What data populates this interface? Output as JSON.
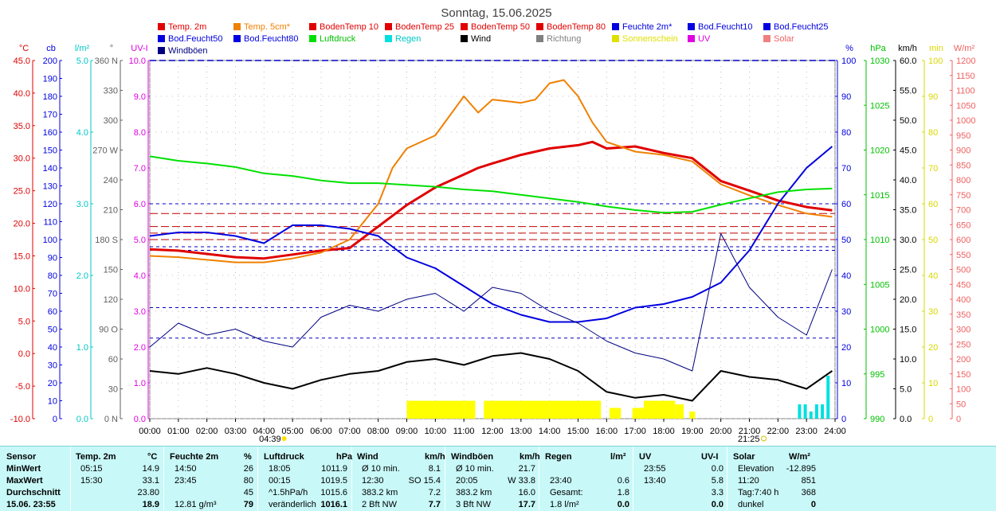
{
  "title": "Sonntag, 15.06.2025",
  "legend": [
    {
      "label": "Temp. 2m",
      "color": "#e00000"
    },
    {
      "label": "Temp. 5cm*",
      "color": "#f08000"
    },
    {
      "label": "BodenTemp 10",
      "color": "#e00000"
    },
    {
      "label": "BodenTemp 25",
      "color": "#e00000"
    },
    {
      "label": "BodenTemp 50",
      "color": "#e00000"
    },
    {
      "label": "BodenTemp 80",
      "color": "#e00000"
    },
    {
      "label": "Feuchte 2m*",
      "color": "#0000e0"
    },
    {
      "label": "Bod.Feucht10",
      "color": "#0000e0"
    },
    {
      "label": "Bod.Feucht25",
      "color": "#0000e0"
    },
    {
      "label": "Bod.Feucht50",
      "color": "#0000e0"
    },
    {
      "label": "Bod.Feucht80",
      "color": "#0000e0"
    },
    {
      "label": "Luftdruck",
      "color": "#00e000"
    },
    {
      "label": "Regen",
      "color": "#00e0e0"
    },
    {
      "label": "Wind",
      "color": "#000000"
    },
    {
      "label": "Richtung",
      "color": "#808080"
    },
    {
      "label": "Sonnenschein",
      "color": "#e0e000"
    },
    {
      "label": "UV",
      "color": "#e000e0"
    },
    {
      "label": "Solar",
      "color": "#f08080"
    },
    {
      "label": "Windböen",
      "color": "#000080"
    }
  ],
  "axes": {
    "temp": {
      "unit": "°C",
      "color": "#e00000",
      "ticks": [
        "45.0",
        "40.0",
        "35.0",
        "30.0",
        "25.0",
        "20.0",
        "15.0",
        "10.0",
        "5.0",
        "0.0",
        "-5.0",
        "-10.0"
      ]
    },
    "cb": {
      "unit": "cb",
      "color": "#0000e0",
      "ticks": [
        "200",
        "190",
        "180",
        "170",
        "160",
        "150",
        "140",
        "130",
        "120",
        "110",
        "100",
        "90",
        "80",
        "70",
        "60",
        "50",
        "40",
        "30",
        "20",
        "10",
        "0"
      ]
    },
    "rain": {
      "unit": "l/m²",
      "color": "#00c8c8",
      "ticks": [
        "5.0",
        "4.0",
        "3.0",
        "2.0",
        "1.0",
        "0.0"
      ]
    },
    "dir": {
      "unit": "°",
      "color": "#606060",
      "ticks": [
        "360 N",
        "330",
        "300",
        "270 W",
        "240",
        "210",
        "180 S",
        "150",
        "120",
        "90 O",
        "60",
        "30",
        "0 N"
      ]
    },
    "uv": {
      "unit": "UV-I",
      "color": "#e000e0",
      "ticks": [
        "10.0",
        "9.0",
        "8.0",
        "7.0",
        "6.0",
        "5.0",
        "4.0",
        "3.0",
        "2.0",
        "1.0",
        "0.0"
      ]
    },
    "pct": {
      "unit": "%",
      "color": "#0000e0",
      "ticks": [
        "100",
        "90",
        "80",
        "70",
        "60",
        "50",
        "40",
        "30",
        "20",
        "10",
        "0"
      ]
    },
    "hpa": {
      "unit": "hPa",
      "color": "#00c000",
      "ticks": [
        "1030",
        "1025",
        "1020",
        "1015",
        "1010",
        "1005",
        "1000",
        "995",
        "990"
      ]
    },
    "kmh": {
      "unit": "km/h",
      "color": "#000000",
      "ticks": [
        "60.0",
        "55.0",
        "50.0",
        "45.0",
        "40.0",
        "35.0",
        "30.0",
        "25.0",
        "20.0",
        "15.0",
        "10.0",
        "5.0",
        "0.0"
      ]
    },
    "min": {
      "unit": "min",
      "color": "#d8d800",
      "ticks": [
        "100",
        "90",
        "80",
        "70",
        "60",
        "50",
        "40",
        "30",
        "20",
        "10",
        "0"
      ]
    },
    "solar": {
      "unit": "W/m²",
      "color": "#f06060",
      "ticks": [
        "1200",
        "1150",
        "1100",
        "1050",
        "1000",
        "950",
        "900",
        "850",
        "800",
        "750",
        "700",
        "650",
        "600",
        "550",
        "500",
        "450",
        "400",
        "350",
        "300",
        "250",
        "200",
        "150",
        "100",
        "50",
        "0"
      ]
    }
  },
  "x_ticks": [
    "00:00",
    "01:00",
    "02:00",
    "03:00",
    "04:00",
    "05:00",
    "06:00",
    "07:00",
    "08:00",
    "09:00",
    "10:00",
    "11:00",
    "12:00",
    "13:00",
    "14:00",
    "15:00",
    "16:00",
    "17:00",
    "18:00",
    "19:00",
    "20:00",
    "21:00",
    "22:00",
    "23:00",
    "24:00"
  ],
  "sunrise": "04:39",
  "sunset": "21:25",
  "chart_data": {
    "type": "line",
    "x_unit": "hours",
    "series": [
      {
        "name": "Temp. 2m",
        "axis": "temp",
        "color": "#e00000",
        "x": [
          0,
          1,
          2,
          3,
          4,
          5,
          6,
          7,
          8,
          9,
          10,
          11,
          11.5,
          12,
          13,
          14,
          15,
          15.5,
          16,
          17,
          18,
          19,
          20,
          21,
          22,
          23,
          23.9
        ],
        "y": [
          16.0,
          15.8,
          15.3,
          14.8,
          14.6,
          15.2,
          15.8,
          16.2,
          19.5,
          22.8,
          25.5,
          27.5,
          28.5,
          29.2,
          30.5,
          31.5,
          32.0,
          32.5,
          31.5,
          31.8,
          30.8,
          30.0,
          26.5,
          25.0,
          23.5,
          22.5,
          22.0
        ]
      },
      {
        "name": "Temp. 5cm*",
        "axis": "temp",
        "color": "#f08000",
        "x": [
          0,
          1,
          2,
          3,
          4,
          5,
          6,
          7,
          8,
          8.5,
          9,
          10,
          10.5,
          11,
          11.5,
          12,
          13,
          13.5,
          14,
          14.5,
          15,
          15.5,
          16,
          17,
          18,
          19,
          20,
          21,
          22,
          23,
          23.9
        ],
        "y": [
          15.0,
          14.8,
          14.4,
          14.0,
          14.0,
          14.6,
          15.5,
          17.5,
          23.0,
          28.5,
          31.5,
          33.5,
          36.5,
          39.5,
          37.0,
          39.0,
          38.5,
          39.0,
          41.5,
          42.0,
          39.5,
          35.5,
          32.5,
          31.0,
          30.5,
          29.5,
          26.0,
          24.3,
          22.8,
          21.5,
          21.0
        ]
      },
      {
        "name": "Feuchte 2m*",
        "axis": "pct",
        "color": "#0000e0",
        "x": [
          0,
          1,
          2,
          3,
          4,
          5,
          6,
          7,
          8,
          9,
          10,
          11,
          12,
          13,
          14,
          15,
          16,
          17,
          18,
          19,
          20,
          21,
          22,
          23,
          23.9
        ],
        "y": [
          51,
          52,
          52,
          51,
          49,
          54,
          54,
          53,
          51,
          45,
          42,
          37,
          32,
          29,
          27,
          27,
          28,
          31,
          32,
          34,
          38,
          47,
          60,
          70,
          76
        ]
      },
      {
        "name": "Luftdruck",
        "axis": "hpa",
        "color": "#00e000",
        "x": [
          0,
          1,
          2,
          3,
          4,
          5,
          6,
          7,
          8,
          9,
          10,
          11,
          12,
          13,
          14,
          15,
          16,
          17,
          18,
          19,
          20,
          21,
          22,
          23,
          23.9
        ],
        "y": [
          1019.3,
          1018.8,
          1018.5,
          1018.1,
          1017.4,
          1017.1,
          1016.6,
          1016.3,
          1016.3,
          1016.1,
          1015.9,
          1015.6,
          1015.4,
          1015.0,
          1014.6,
          1014.2,
          1013.7,
          1013.3,
          1013.0,
          1013.1,
          1013.9,
          1014.6,
          1015.3,
          1015.6,
          1015.7
        ]
      },
      {
        "name": "Wind",
        "axis": "kmh",
        "color": "#000000",
        "x": [
          0,
          1,
          2,
          3,
          4,
          5,
          6,
          7,
          8,
          9,
          10,
          11,
          12,
          13,
          14,
          15,
          16,
          17,
          18,
          19,
          20,
          21,
          22,
          23,
          23.9
        ],
        "y": [
          8.0,
          7.5,
          8.5,
          7.5,
          6.0,
          5.0,
          6.5,
          7.5,
          8.0,
          9.5,
          10.0,
          9.0,
          10.5,
          11.0,
          10.0,
          8.0,
          4.5,
          3.5,
          4.0,
          3.0,
          8.0,
          7.0,
          6.5,
          5.0,
          8.0
        ]
      },
      {
        "name": "Windböen",
        "axis": "kmh",
        "color": "#000080",
        "x": [
          0,
          1,
          2,
          3,
          4,
          5,
          6,
          7,
          8,
          9,
          10,
          11,
          12,
          13,
          14,
          15,
          16,
          17,
          18,
          19,
          20,
          21,
          22,
          23,
          23.9
        ],
        "y": [
          12,
          16,
          14,
          15,
          13,
          12,
          17,
          19,
          18,
          20,
          21,
          18,
          22,
          21,
          18,
          16,
          13,
          11,
          10,
          8,
          31,
          22,
          17,
          14,
          25
        ]
      },
      {
        "name": "Sonnenschein",
        "axis": "min",
        "color": "#ffff00",
        "x": [
          8.8,
          9.0,
          10.0,
          11.0,
          11.4,
          11.7,
          12.0,
          13.0,
          14.0,
          15.0,
          15.8,
          16.1,
          16.5,
          16.9,
          17.3,
          18.4,
          18.7,
          18.9,
          19.1,
          21.4
        ],
        "y": [
          0,
          5,
          5,
          5,
          0,
          5,
          5,
          5,
          5,
          5,
          0,
          3,
          0,
          3,
          5,
          4,
          0,
          2,
          0,
          1
        ]
      },
      {
        "name": "Regen",
        "axis": "rain",
        "color": "#00e0e0",
        "x": [
          22.7,
          22.9,
          23.1,
          23.3,
          23.5,
          23.7
        ],
        "y": [
          0.2,
          0.2,
          0.1,
          0.2,
          0.2,
          0.6
        ]
      }
    ],
    "ref_lines_temp": [
      21.5,
      19.5,
      18.5,
      17.5
    ],
    "ref_lines_pct": [
      22.5,
      31,
      47,
      48,
      60
    ]
  },
  "table": {
    "headers": [
      "Sensor",
      "Temp. 2m",
      "°C",
      "Feuchte 2m",
      "%",
      "Luftdruck",
      "hPa",
      "Wind",
      "km/h",
      "Windböen",
      "km/h",
      "Regen",
      "l/m²",
      "UV",
      "UV-I",
      "Solar",
      "W/m²"
    ],
    "rows": [
      {
        "label": "MinWert",
        "cells": [
          "05:15",
          "14.9",
          "14:50",
          "26",
          "18:05",
          "1011.9",
          "Ø 10 min.",
          "8.1",
          "Ø 10 min.",
          "21.7",
          "",
          "",
          "23:55",
          "0.0",
          "Elevation",
          "-12.895"
        ]
      },
      {
        "label": "MaxWert",
        "cells": [
          "15:30",
          "33.1",
          "23:45",
          "80",
          "00:15",
          "1019.5",
          "12:30",
          "SO 15.4",
          "20:05",
          "W 33.8",
          "23:40",
          "0.6",
          "13:40",
          "5.8",
          "11:20",
          "851"
        ]
      },
      {
        "label": "Durchschnitt",
        "cells": [
          "",
          "23.80",
          "",
          "45",
          "^1.5hPa/h",
          "1015.6",
          "383.2 km",
          "7.2",
          "383.2 km",
          "16.0",
          "Gesamt:",
          "1.8",
          "",
          "3.3",
          "Tag:7:40 h",
          "368"
        ]
      },
      {
        "label": "15.06. 23:55",
        "cells": [
          "",
          "18.9",
          "12.81 g/m³",
          "79",
          "veränderlich",
          "1016.1",
          "2 Bft NW",
          "7.7",
          "3 Bft NW",
          "17.7",
          "1.8 l/m²",
          "0.0",
          "",
          "0.0",
          "dunkel",
          "0"
        ]
      }
    ]
  }
}
